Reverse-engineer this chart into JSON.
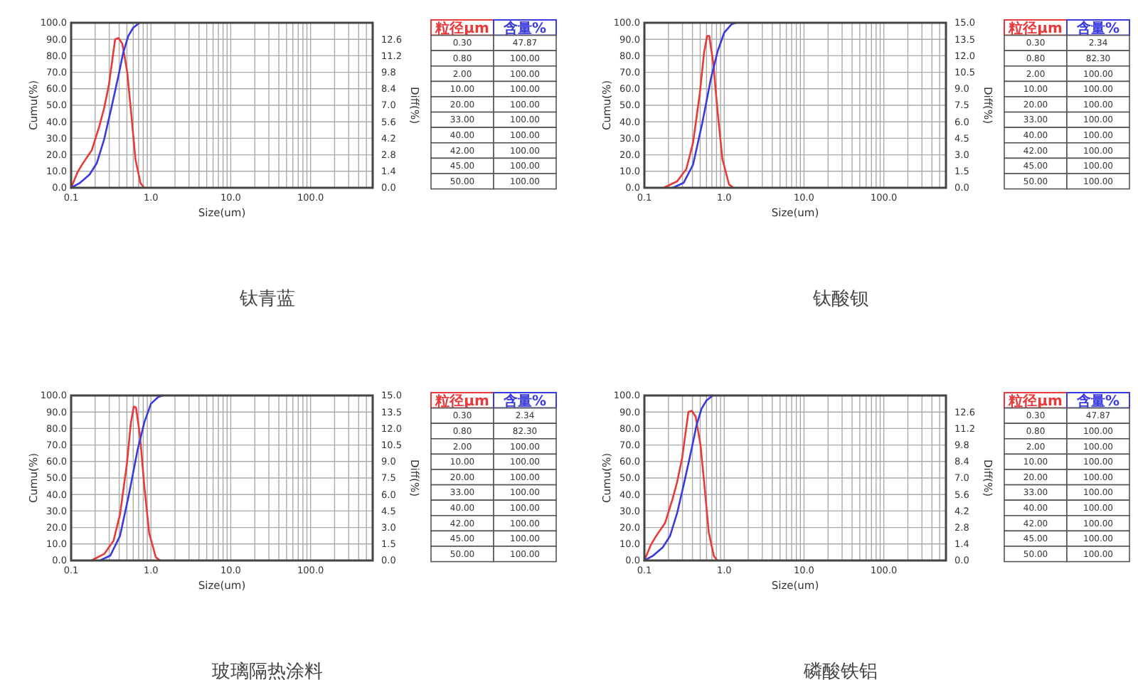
{
  "chart_data": [
    {
      "type": "line",
      "title": "钛青蓝",
      "xlabel": "Size(um)",
      "ylabel": "Cumu(%)",
      "y2label": "Diff(%)",
      "log": "x",
      "grid": true,
      "xlim": [
        0.1,
        600
      ],
      "xticks": [
        {
          "value": 0.1,
          "label": "0.1"
        },
        {
          "value": 0.2,
          "label": null
        },
        {
          "value": 0.3,
          "label": null
        },
        {
          "value": 0.4,
          "label": null
        },
        {
          "value": 0.5,
          "label": null
        },
        {
          "value": 0.6,
          "label": null
        },
        {
          "value": 0.7,
          "label": null
        },
        {
          "value": 0.8,
          "label": null
        },
        {
          "value": 0.9,
          "label": null
        },
        {
          "value": 1,
          "label": "1.0"
        },
        {
          "value": 2,
          "label": null
        },
        {
          "value": 3,
          "label": null
        },
        {
          "value": 4,
          "label": null
        },
        {
          "value": 5,
          "label": null
        },
        {
          "value": 6,
          "label": null
        },
        {
          "value": 7,
          "label": null
        },
        {
          "value": 8,
          "label": null
        },
        {
          "value": 9,
          "label": null
        },
        {
          "value": 10,
          "label": "10.0"
        },
        {
          "value": 20,
          "label": null
        },
        {
          "value": 30,
          "label": null
        },
        {
          "value": 40,
          "label": null
        },
        {
          "value": 50,
          "label": null
        },
        {
          "value": 60,
          "label": null
        },
        {
          "value": 70,
          "label": null
        },
        {
          "value": 80,
          "label": null
        },
        {
          "value": 90,
          "label": null
        },
        {
          "value": 100,
          "label": "100.0"
        },
        {
          "value": 200,
          "label": null
        },
        {
          "value": 300,
          "label": null
        },
        {
          "value": 400,
          "label": null
        },
        {
          "value": 500,
          "label": null
        }
      ],
      "ylim": [
        0,
        100
      ],
      "yticks": [
        {
          "value": 0,
          "label": "0.0"
        },
        {
          "value": 10,
          "label": "10.0"
        },
        {
          "value": 20,
          "label": "20.0"
        },
        {
          "value": 30,
          "label": "30.0"
        },
        {
          "value": 40,
          "label": "40.0"
        },
        {
          "value": 50,
          "label": "50.0"
        },
        {
          "value": 60,
          "label": "60.0"
        },
        {
          "value": 70,
          "label": "70.0"
        },
        {
          "value": 80,
          "label": "80.0"
        },
        {
          "value": 90,
          "label": "90.0"
        },
        {
          "value": 100,
          "label": "100.0"
        }
      ],
      "y2lim": [
        0,
        14
      ],
      "y2ticks": [
        {
          "value": 0,
          "label": "0.0"
        },
        1.4,
        2.8,
        4.2,
        5.6,
        {
          "value": 7,
          "label": "7.0"
        },
        8.4,
        9.8,
        11.2,
        12.6
      ],
      "series": [
        {
          "axis": "y2",
          "color": "#e83a3a",
          "x": [
            0.1,
            0.12,
            0.138,
            0.182,
            0.225,
            0.258,
            0.297,
            0.332,
            0.356,
            0.392,
            0.439,
            0.505,
            0.572,
            0.64,
            0.74,
            0.82
          ],
          "values": [
            0,
            1.3,
            2.0,
            3.2,
            5.2,
            6.7,
            8.7,
            11.1,
            12.6,
            12.7,
            12.2,
            9.8,
            6.0,
            2.4,
            0.4,
            0
          ]
        },
        {
          "axis": "y",
          "color": "#3a3ae0",
          "x": [
            0.1,
            0.129,
            0.17,
            0.21,
            0.258,
            0.318,
            0.392,
            0.45,
            0.52,
            0.6,
            0.72
          ],
          "values": [
            0,
            3,
            8,
            15,
            29,
            48,
            68,
            82,
            92,
            97,
            100
          ]
        }
      ],
      "annotations": [
        "粒径μm",
        "含量%",
        "0.30",
        "47.87",
        "0.80",
        "100.00",
        "2.00",
        "100.00",
        "10.00",
        "100.00",
        "20.00",
        "100.00",
        "33.00",
        "100.00",
        "40.00",
        "100.00",
        "42.00",
        "100.00",
        "45.00",
        "100.00",
        "50.00",
        "100.00"
      ]
    },
    {
      "type": "line",
      "title": "钛酸钡",
      "xlabel": "Size(um)",
      "ylabel": "Cumu(%)",
      "y2label": "Diff(%)",
      "log": "x",
      "grid": true,
      "xlim": [
        0.1,
        600
      ],
      "xticks": [
        {
          "value": 0.1,
          "label": "0.1"
        },
        {
          "value": 0.2,
          "label": null
        },
        {
          "value": 0.3,
          "label": null
        },
        {
          "value": 0.4,
          "label": null
        },
        {
          "value": 0.5,
          "label": null
        },
        {
          "value": 0.6,
          "label": null
        },
        {
          "value": 0.7,
          "label": null
        },
        {
          "value": 0.8,
          "label": null
        },
        {
          "value": 0.9,
          "label": null
        },
        {
          "value": 1,
          "label": "1.0"
        },
        {
          "value": 2,
          "label": null
        },
        {
          "value": 3,
          "label": null
        },
        {
          "value": 4,
          "label": null
        },
        {
          "value": 5,
          "label": null
        },
        {
          "value": 6,
          "label": null
        },
        {
          "value": 7,
          "label": null
        },
        {
          "value": 8,
          "label": null
        },
        {
          "value": 9,
          "label": null
        },
        {
          "value": 10,
          "label": "10.0"
        },
        {
          "value": 20,
          "label": null
        },
        {
          "value": 30,
          "label": null
        },
        {
          "value": 40,
          "label": null
        },
        {
          "value": 50,
          "label": null
        },
        {
          "value": 60,
          "label": null
        },
        {
          "value": 70,
          "label": null
        },
        {
          "value": 80,
          "label": null
        },
        {
          "value": 90,
          "label": null
        },
        {
          "value": 100,
          "label": "100.0"
        },
        {
          "value": 200,
          "label": null
        },
        {
          "value": 300,
          "label": null
        },
        {
          "value": 400,
          "label": null
        },
        {
          "value": 500,
          "label": null
        }
      ],
      "ylim": [
        0,
        100
      ],
      "yticks": [
        {
          "value": 0,
          "label": "0.0"
        },
        {
          "value": 10,
          "label": "10.0"
        },
        {
          "value": 20,
          "label": "20.0"
        },
        {
          "value": 30,
          "label": "30.0"
        },
        {
          "value": 40,
          "label": "40.0"
        },
        {
          "value": 50,
          "label": "50.0"
        },
        {
          "value": 60,
          "label": "60.0"
        },
        {
          "value": 70,
          "label": "70.0"
        },
        {
          "value": 80,
          "label": "80.0"
        },
        {
          "value": 90,
          "label": "90.0"
        },
        {
          "value": 100,
          "label": "100.0"
        }
      ],
      "y2lim": [
        0,
        15
      ],
      "y2ticks": [
        {
          "value": 0,
          "label": "0.0"
        },
        1.5,
        {
          "value": 3,
          "label": "3.0"
        },
        4.5,
        {
          "value": 6,
          "label": "6.0"
        },
        7.5,
        {
          "value": 9,
          "label": "9.0"
        },
        10.5,
        {
          "value": 12,
          "label": "12.0"
        },
        13.5,
        {
          "value": 15,
          "label": "15.0"
        }
      ],
      "series": [
        {
          "axis": "y2",
          "color": "#e83a3a",
          "x": [
            0.175,
            0.258,
            0.335,
            0.407,
            0.495,
            0.56,
            0.61,
            0.65,
            0.73,
            0.83,
            0.95,
            1.15,
            1.31
          ],
          "values": [
            0,
            0.6,
            1.7,
            4.1,
            8.6,
            12.3,
            13.8,
            13.8,
            11.3,
            6.8,
            2.6,
            0.3,
            0
          ]
        },
        {
          "axis": "y",
          "color": "#3a3ae0",
          "x": [
            0.227,
            0.31,
            0.407,
            0.53,
            0.68,
            0.83,
            1.0,
            1.23,
            1.4
          ],
          "values": [
            0,
            3,
            14,
            39,
            66,
            83,
            94,
            99,
            100
          ]
        }
      ],
      "annotations": [
        "粒径μm",
        "含量%",
        "0.30",
        "2.34",
        "0.80",
        "82.30",
        "2.00",
        "100.00",
        "10.00",
        "100.00",
        "20.00",
        "100.00",
        "33.00",
        "100.00",
        "40.00",
        "100.00",
        "42.00",
        "100.00",
        "45.00",
        "100.00",
        "50.00",
        "100.00"
      ]
    },
    {
      "type": "line",
      "title": "玻璃隔热涂料",
      "xlabel": "Size(um)",
      "ylabel": "Cumu(%)",
      "y2label": "Diff(%)",
      "log": "x",
      "grid": true,
      "xlim": [
        0.1,
        600
      ],
      "xticks": [
        {
          "value": 0.1,
          "label": "0.1"
        },
        {
          "value": 0.2,
          "label": null
        },
        {
          "value": 0.3,
          "label": null
        },
        {
          "value": 0.4,
          "label": null
        },
        {
          "value": 0.5,
          "label": null
        },
        {
          "value": 0.6,
          "label": null
        },
        {
          "value": 0.7,
          "label": null
        },
        {
          "value": 0.8,
          "label": null
        },
        {
          "value": 0.9,
          "label": null
        },
        {
          "value": 1,
          "label": "1.0"
        },
        {
          "value": 2,
          "label": null
        },
        {
          "value": 3,
          "label": null
        },
        {
          "value": 4,
          "label": null
        },
        {
          "value": 5,
          "label": null
        },
        {
          "value": 6,
          "label": null
        },
        {
          "value": 7,
          "label": null
        },
        {
          "value": 8,
          "label": null
        },
        {
          "value": 9,
          "label": null
        },
        {
          "value": 10,
          "label": "10.0"
        },
        {
          "value": 20,
          "label": null
        },
        {
          "value": 30,
          "label": null
        },
        {
          "value": 40,
          "label": null
        },
        {
          "value": 50,
          "label": null
        },
        {
          "value": 60,
          "label": null
        },
        {
          "value": 70,
          "label": null
        },
        {
          "value": 80,
          "label": null
        },
        {
          "value": 90,
          "label": null
        },
        {
          "value": 100,
          "label": "100.0"
        },
        {
          "value": 200,
          "label": null
        },
        {
          "value": 300,
          "label": null
        },
        {
          "value": 400,
          "label": null
        },
        {
          "value": 500,
          "label": null
        }
      ],
      "ylim": [
        0,
        100
      ],
      "yticks": [
        {
          "value": 0,
          "label": "0.0"
        },
        {
          "value": 10,
          "label": "10.0"
        },
        {
          "value": 20,
          "label": "20.0"
        },
        {
          "value": 30,
          "label": "30.0"
        },
        {
          "value": 40,
          "label": "40.0"
        },
        {
          "value": 50,
          "label": "50.0"
        },
        {
          "value": 60,
          "label": "60.0"
        },
        {
          "value": 70,
          "label": "70.0"
        },
        {
          "value": 80,
          "label": "80.0"
        },
        {
          "value": 90,
          "label": "90.0"
        },
        {
          "value": 100,
          "label": "100.0"
        }
      ],
      "y2lim": [
        0,
        15
      ],
      "y2ticks": [
        {
          "value": 0,
          "label": "0.0"
        },
        1.5,
        {
          "value": 3,
          "label": "3.0"
        },
        4.5,
        {
          "value": 6,
          "label": "6.0"
        },
        7.5,
        {
          "value": 9,
          "label": "9.0"
        },
        10.5,
        {
          "value": 12,
          "label": "12.0"
        },
        13.5,
        {
          "value": 15,
          "label": "15.0"
        }
      ],
      "series": [
        {
          "axis": "y2",
          "color": "#e83a3a",
          "x": [
            0.18,
            0.26,
            0.34,
            0.41,
            0.5,
            0.56,
            0.61,
            0.65,
            0.73,
            0.83,
            0.95,
            1.15,
            1.3
          ],
          "values": [
            0,
            0.6,
            1.8,
            4.2,
            8.8,
            12.5,
            14.0,
            13.9,
            11.3,
            6.6,
            2.5,
            0.3,
            0
          ]
        },
        {
          "axis": "y",
          "color": "#3a3ae0",
          "x": [
            0.23,
            0.31,
            0.41,
            0.53,
            0.68,
            0.83,
            1.0,
            1.23,
            1.4
          ],
          "values": [
            0,
            3,
            15,
            40,
            67,
            84,
            95,
            99,
            100
          ]
        }
      ],
      "annotations": [
        "粒径μm",
        "含量%",
        "0.30",
        "2.34",
        "0.80",
        "82.30",
        "2.00",
        "100.00",
        "10.00",
        "100.00",
        "20.00",
        "100.00",
        "33.00",
        "100.00",
        "40.00",
        "100.00",
        "42.00",
        "100.00",
        "45.00",
        "100.00",
        "50.00",
        "100.00"
      ]
    },
    {
      "type": "line",
      "title": "磷酸铁铝",
      "xlabel": "Size(um)",
      "ylabel": "Cumu(%)",
      "y2label": "Diff(%)",
      "log": "x",
      "grid": true,
      "xlim": [
        0.1,
        600
      ],
      "xticks": [
        {
          "value": 0.1,
          "label": "0.1"
        },
        {
          "value": 0.2,
          "label": null
        },
        {
          "value": 0.3,
          "label": null
        },
        {
          "value": 0.4,
          "label": null
        },
        {
          "value": 0.5,
          "label": null
        },
        {
          "value": 0.6,
          "label": null
        },
        {
          "value": 0.7,
          "label": null
        },
        {
          "value": 0.8,
          "label": null
        },
        {
          "value": 0.9,
          "label": null
        },
        {
          "value": 1,
          "label": "1.0"
        },
        {
          "value": 2,
          "label": null
        },
        {
          "value": 3,
          "label": null
        },
        {
          "value": 4,
          "label": null
        },
        {
          "value": 5,
          "label": null
        },
        {
          "value": 6,
          "label": null
        },
        {
          "value": 7,
          "label": null
        },
        {
          "value": 8,
          "label": null
        },
        {
          "value": 9,
          "label": null
        },
        {
          "value": 10,
          "label": "10.0"
        },
        {
          "value": 20,
          "label": null
        },
        {
          "value": 30,
          "label": null
        },
        {
          "value": 40,
          "label": null
        },
        {
          "value": 50,
          "label": null
        },
        {
          "value": 60,
          "label": null
        },
        {
          "value": 70,
          "label": null
        },
        {
          "value": 80,
          "label": null
        },
        {
          "value": 90,
          "label": null
        },
        {
          "value": 100,
          "label": "100.0"
        },
        {
          "value": 200,
          "label": null
        },
        {
          "value": 300,
          "label": null
        },
        {
          "value": 400,
          "label": null
        },
        {
          "value": 500,
          "label": null
        }
      ],
      "ylim": [
        0,
        100
      ],
      "yticks": [
        {
          "value": 0,
          "label": "0.0"
        },
        {
          "value": 10,
          "label": "10.0"
        },
        {
          "value": 20,
          "label": "20.0"
        },
        {
          "value": 30,
          "label": "30.0"
        },
        {
          "value": 40,
          "label": "40.0"
        },
        {
          "value": 50,
          "label": "50.0"
        },
        {
          "value": 60,
          "label": "60.0"
        },
        {
          "value": 70,
          "label": "70.0"
        },
        {
          "value": 80,
          "label": "80.0"
        },
        {
          "value": 90,
          "label": "90.0"
        },
        {
          "value": 100,
          "label": "100.0"
        }
      ],
      "y2lim": [
        0,
        14
      ],
      "y2ticks": [
        {
          "value": 0,
          "label": "0.0"
        },
        1.4,
        2.8,
        4.2,
        5.6,
        {
          "value": 7,
          "label": "7.0"
        },
        8.4,
        9.8,
        11.2,
        12.6
      ],
      "series": [
        {
          "axis": "y2",
          "color": "#e83a3a",
          "x": [
            0.1,
            0.12,
            0.138,
            0.182,
            0.225,
            0.258,
            0.297,
            0.332,
            0.356,
            0.392,
            0.439,
            0.505,
            0.572,
            0.64,
            0.74,
            0.82
          ],
          "values": [
            0,
            1.3,
            2.0,
            3.2,
            5.2,
            6.7,
            8.7,
            11.1,
            12.6,
            12.7,
            12.2,
            9.8,
            6.0,
            2.4,
            0.4,
            0
          ]
        },
        {
          "axis": "y",
          "color": "#3a3ae0",
          "x": [
            0.1,
            0.129,
            0.17,
            0.21,
            0.258,
            0.318,
            0.392,
            0.45,
            0.52,
            0.6,
            0.72
          ],
          "values": [
            0,
            3,
            8,
            15,
            29,
            48,
            68,
            82,
            92,
            97,
            100
          ]
        }
      ],
      "annotations": [
        "粒径μm",
        "含量%",
        "0.30",
        "47.87",
        "0.80",
        "100.00",
        "2.00",
        "100.00",
        "10.00",
        "100.00",
        "20.00",
        "100.00",
        "33.00",
        "100.00",
        "40.00",
        "100.00",
        "42.00",
        "100.00",
        "45.00",
        "100.00",
        "50.00",
        "100.00"
      ]
    }
  ]
}
